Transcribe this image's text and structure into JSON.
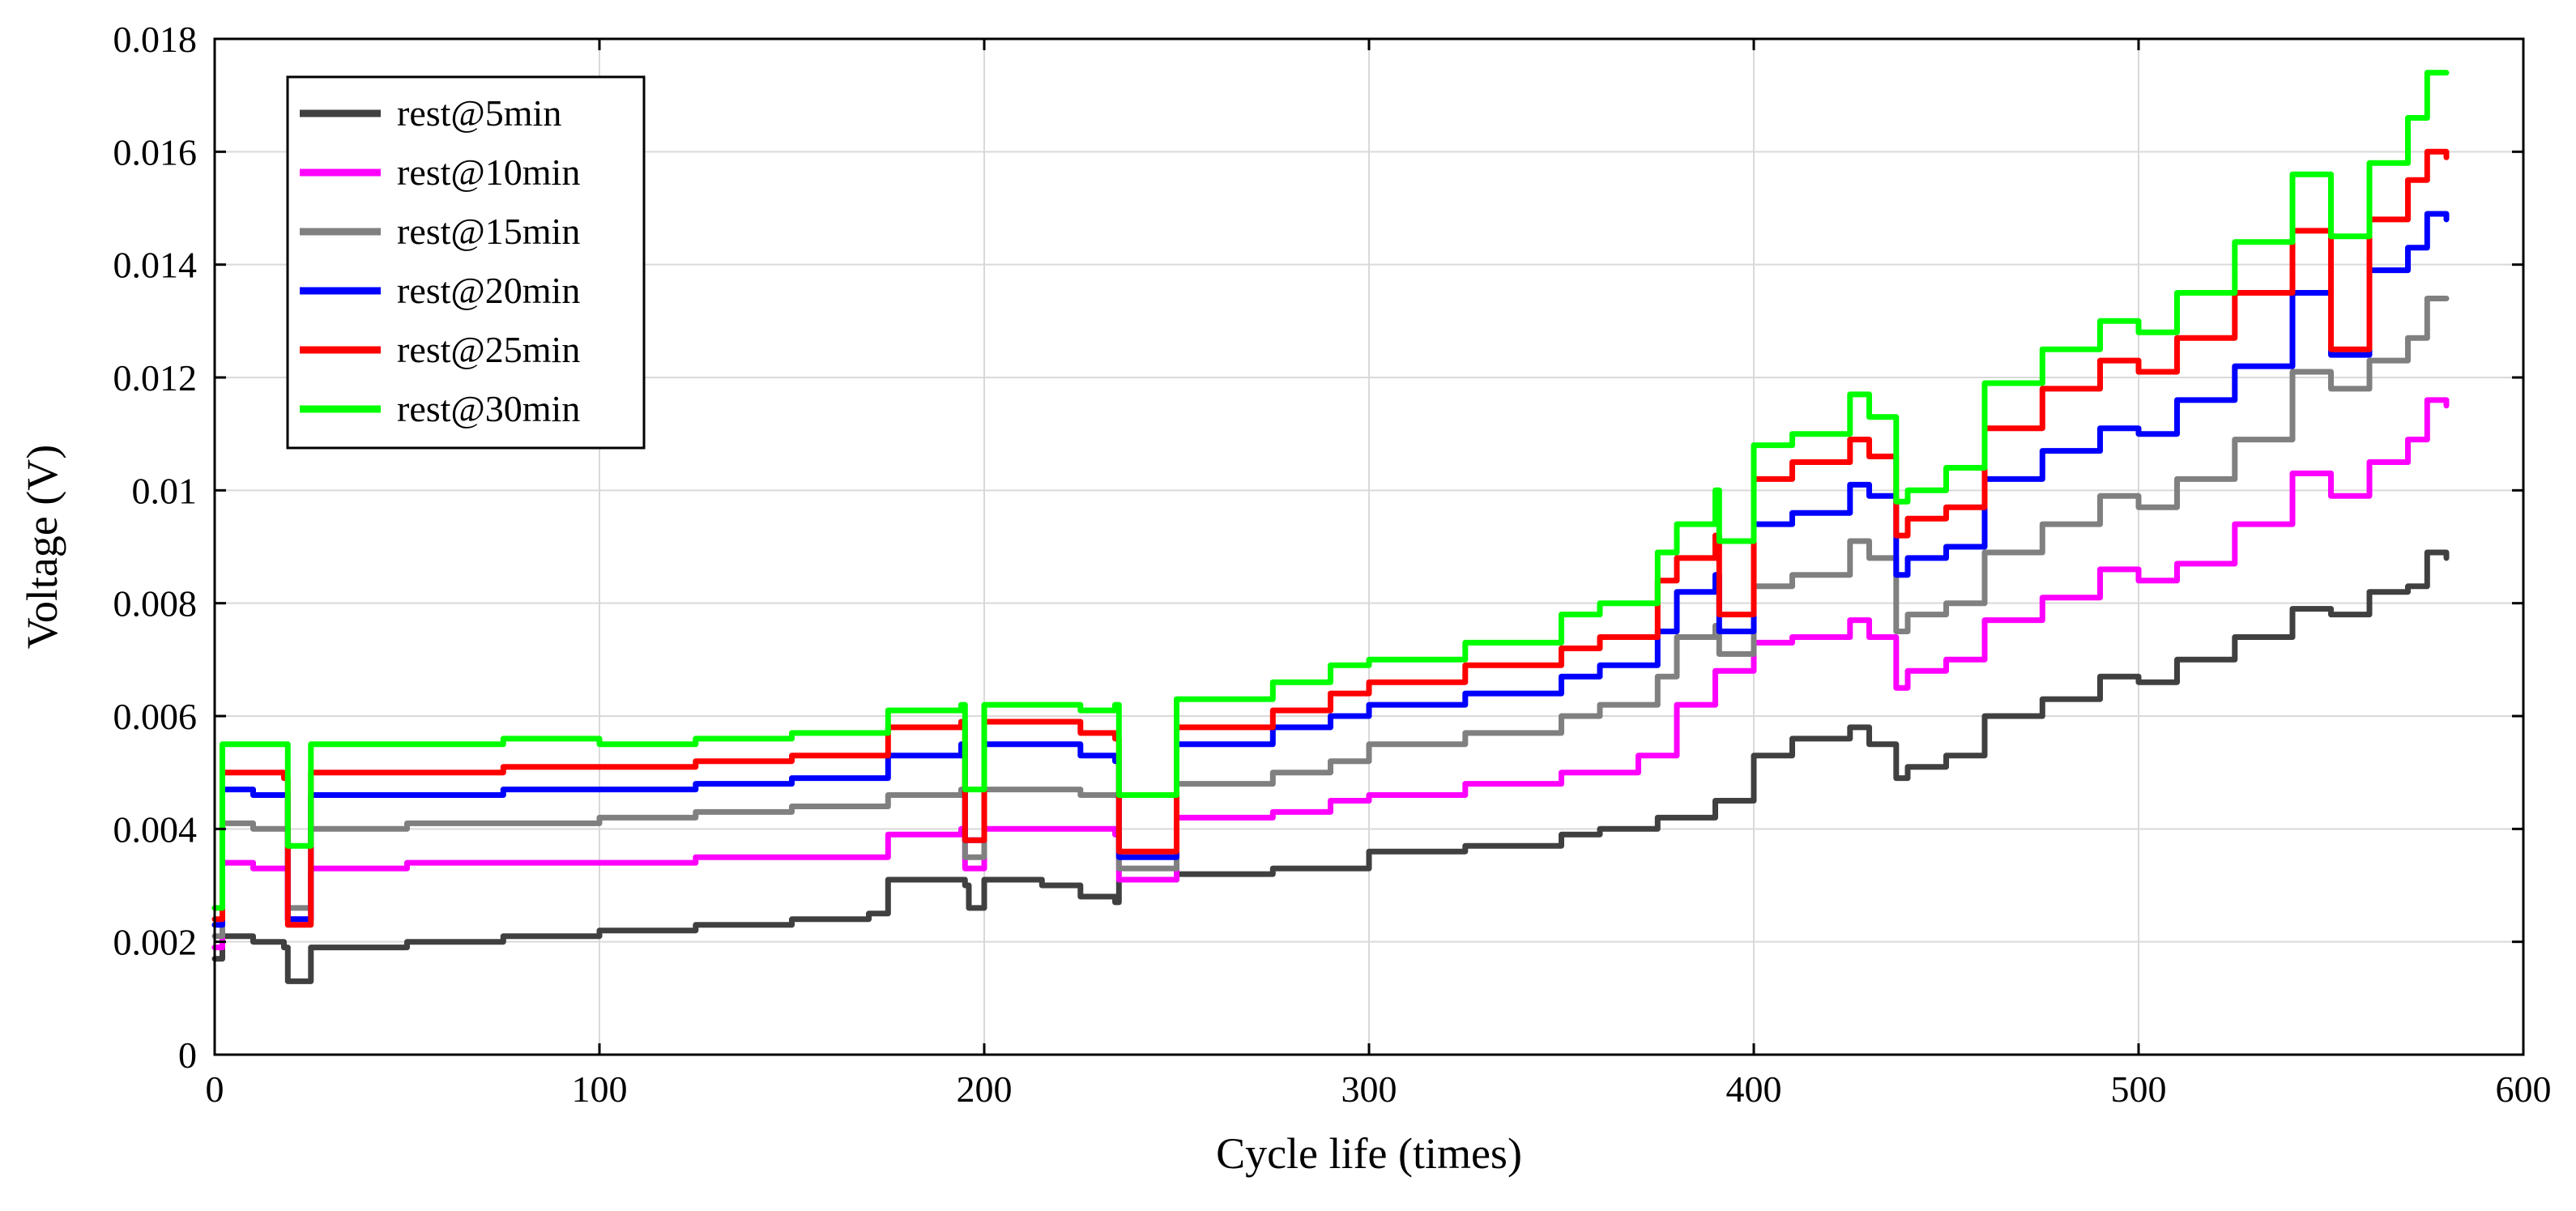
{
  "chart_data": {
    "type": "line",
    "title": "",
    "xlabel": "Cycle life (times)",
    "ylabel": "Voltage (V)",
    "xlim": [
      0,
      600
    ],
    "ylim": [
      0,
      0.018
    ],
    "x_ticks": [
      "0",
      "100",
      "200",
      "300",
      "400",
      "500",
      "600"
    ],
    "y_ticks": [
      "0",
      "0.002",
      "0.004",
      "0.006",
      "0.008",
      "0.01",
      "0.012",
      "0.014",
      "0.016",
      "0.018"
    ],
    "grid": true,
    "legend_position": "top-left",
    "series": [
      {
        "name": "rest@5min",
        "color": "#404040",
        "x": [
          0,
          2,
          10,
          18,
          19,
          25,
          50,
          75,
          100,
          125,
          150,
          170,
          175,
          195,
          196,
          200,
          215,
          225,
          234,
          235,
          250,
          275,
          300,
          325,
          350,
          360,
          375,
          390,
          400,
          410,
          425,
          430,
          437,
          440,
          450,
          460,
          475,
          490,
          500,
          510,
          525,
          540,
          550,
          560,
          570,
          575,
          580
        ],
        "y": [
          0.0017,
          0.0021,
          0.002,
          0.0019,
          0.0013,
          0.0019,
          0.002,
          0.0021,
          0.0022,
          0.0023,
          0.0024,
          0.0025,
          0.0031,
          0.003,
          0.0026,
          0.0031,
          0.003,
          0.0028,
          0.0027,
          0.0031,
          0.0032,
          0.0033,
          0.0036,
          0.0037,
          0.0039,
          0.004,
          0.0042,
          0.0045,
          0.0053,
          0.0056,
          0.0058,
          0.0055,
          0.0049,
          0.0051,
          0.0053,
          0.006,
          0.0063,
          0.0067,
          0.0066,
          0.007,
          0.0074,
          0.0079,
          0.0078,
          0.0082,
          0.0083,
          0.0089,
          0.0088
        ]
      },
      {
        "name": "rest@10min",
        "color": "#ff00ff",
        "x": [
          0,
          2,
          10,
          18,
          19,
          25,
          50,
          75,
          100,
          125,
          150,
          160,
          175,
          194,
          195,
          200,
          225,
          234,
          235,
          250,
          275,
          290,
          300,
          325,
          350,
          370,
          380,
          390,
          400,
          410,
          425,
          430,
          437,
          440,
          450,
          460,
          475,
          490,
          500,
          510,
          525,
          540,
          550,
          560,
          570,
          575,
          580
        ],
        "y": [
          0.0019,
          0.0034,
          0.0033,
          0.0033,
          0.0024,
          0.0033,
          0.0034,
          0.0034,
          0.0034,
          0.0035,
          0.0035,
          0.0035,
          0.0039,
          0.004,
          0.0033,
          0.004,
          0.004,
          0.0039,
          0.0031,
          0.0042,
          0.0043,
          0.0045,
          0.0046,
          0.0048,
          0.005,
          0.0053,
          0.0062,
          0.0068,
          0.0073,
          0.0074,
          0.0077,
          0.0074,
          0.0065,
          0.0068,
          0.007,
          0.0077,
          0.0081,
          0.0086,
          0.0084,
          0.0087,
          0.0094,
          0.0103,
          0.0099,
          0.0105,
          0.0109,
          0.0116,
          0.0115
        ]
      },
      {
        "name": "rest@15min",
        "color": "#808080",
        "x": [
          0,
          2,
          10,
          18,
          19,
          25,
          50,
          75,
          100,
          125,
          150,
          175,
          194,
          195,
          200,
          225,
          234,
          235,
          250,
          275,
          290,
          300,
          325,
          350,
          360,
          375,
          380,
          390,
          391,
          400,
          410,
          425,
          430,
          437,
          440,
          450,
          460,
          475,
          490,
          500,
          510,
          525,
          540,
          550,
          560,
          570,
          575,
          580
        ],
        "y": [
          0.0021,
          0.0041,
          0.004,
          0.004,
          0.0026,
          0.004,
          0.0041,
          0.0041,
          0.0042,
          0.0043,
          0.0044,
          0.0046,
          0.0047,
          0.0035,
          0.0047,
          0.0046,
          0.0046,
          0.0033,
          0.0048,
          0.005,
          0.0052,
          0.0055,
          0.0057,
          0.006,
          0.0062,
          0.0067,
          0.0074,
          0.0076,
          0.0071,
          0.0083,
          0.0085,
          0.0091,
          0.0088,
          0.0075,
          0.0078,
          0.008,
          0.0089,
          0.0094,
          0.0099,
          0.0097,
          0.0102,
          0.0109,
          0.0121,
          0.0118,
          0.0123,
          0.0127,
          0.0134,
          0.0134
        ]
      },
      {
        "name": "rest@20min",
        "color": "#0000ff",
        "x": [
          0,
          2,
          10,
          18,
          19,
          25,
          50,
          75,
          100,
          125,
          150,
          175,
          194,
          195,
          200,
          225,
          234,
          235,
          250,
          275,
          290,
          300,
          325,
          350,
          360,
          375,
          380,
          390,
          391,
          400,
          410,
          425,
          430,
          437,
          440,
          450,
          460,
          475,
          490,
          500,
          510,
          525,
          540,
          550,
          560,
          570,
          575,
          580
        ],
        "y": [
          0.0023,
          0.0047,
          0.0046,
          0.0046,
          0.0024,
          0.0046,
          0.0046,
          0.0047,
          0.0047,
          0.0048,
          0.0049,
          0.0053,
          0.0055,
          0.0038,
          0.0055,
          0.0053,
          0.0052,
          0.0035,
          0.0055,
          0.0058,
          0.006,
          0.0062,
          0.0064,
          0.0067,
          0.0069,
          0.0075,
          0.0082,
          0.0085,
          0.0075,
          0.0094,
          0.0096,
          0.0101,
          0.0099,
          0.0085,
          0.0088,
          0.009,
          0.0102,
          0.0107,
          0.0111,
          0.011,
          0.0116,
          0.0122,
          0.0135,
          0.0124,
          0.0139,
          0.0143,
          0.0149,
          0.0148
        ]
      },
      {
        "name": "rest@25min",
        "color": "#ff0000",
        "x": [
          0,
          2,
          10,
          18,
          19,
          25,
          50,
          75,
          100,
          125,
          150,
          175,
          194,
          195,
          200,
          225,
          234,
          235,
          250,
          275,
          290,
          300,
          325,
          350,
          360,
          375,
          380,
          390,
          391,
          400,
          410,
          425,
          430,
          437,
          440,
          450,
          460,
          475,
          490,
          500,
          510,
          525,
          540,
          550,
          560,
          570,
          575,
          580
        ],
        "y": [
          0.0024,
          0.005,
          0.005,
          0.0049,
          0.0023,
          0.005,
          0.005,
          0.0051,
          0.0051,
          0.0052,
          0.0053,
          0.0058,
          0.0059,
          0.0038,
          0.0059,
          0.0057,
          0.0056,
          0.0036,
          0.0058,
          0.0061,
          0.0064,
          0.0066,
          0.0069,
          0.0072,
          0.0074,
          0.0084,
          0.0088,
          0.0092,
          0.0078,
          0.0102,
          0.0105,
          0.0109,
          0.0106,
          0.0092,
          0.0095,
          0.0097,
          0.0111,
          0.0118,
          0.0123,
          0.0121,
          0.0127,
          0.0135,
          0.0146,
          0.0125,
          0.0148,
          0.0155,
          0.016,
          0.0159
        ]
      },
      {
        "name": "rest@30min",
        "color": "#00ff00",
        "x": [
          0,
          2,
          10,
          18,
          19,
          25,
          50,
          75,
          100,
          125,
          150,
          175,
          194,
          195,
          200,
          225,
          234,
          235,
          250,
          275,
          290,
          300,
          325,
          350,
          360,
          375,
          380,
          390,
          391,
          400,
          410,
          425,
          430,
          437,
          440,
          450,
          460,
          475,
          490,
          500,
          510,
          525,
          540,
          550,
          560,
          570,
          575,
          580
        ],
        "y": [
          0.0026,
          0.0055,
          0.0055,
          0.0055,
          0.0037,
          0.0055,
          0.0055,
          0.0056,
          0.0055,
          0.0056,
          0.0057,
          0.0061,
          0.0062,
          0.0047,
          0.0062,
          0.0061,
          0.0062,
          0.0046,
          0.0063,
          0.0066,
          0.0069,
          0.007,
          0.0073,
          0.0078,
          0.008,
          0.0089,
          0.0094,
          0.01,
          0.0091,
          0.0108,
          0.011,
          0.0117,
          0.0113,
          0.0098,
          0.01,
          0.0104,
          0.0119,
          0.0125,
          0.013,
          0.0128,
          0.0135,
          0.0144,
          0.0156,
          0.0145,
          0.0158,
          0.0166,
          0.0174,
          0.0174
        ]
      }
    ]
  }
}
